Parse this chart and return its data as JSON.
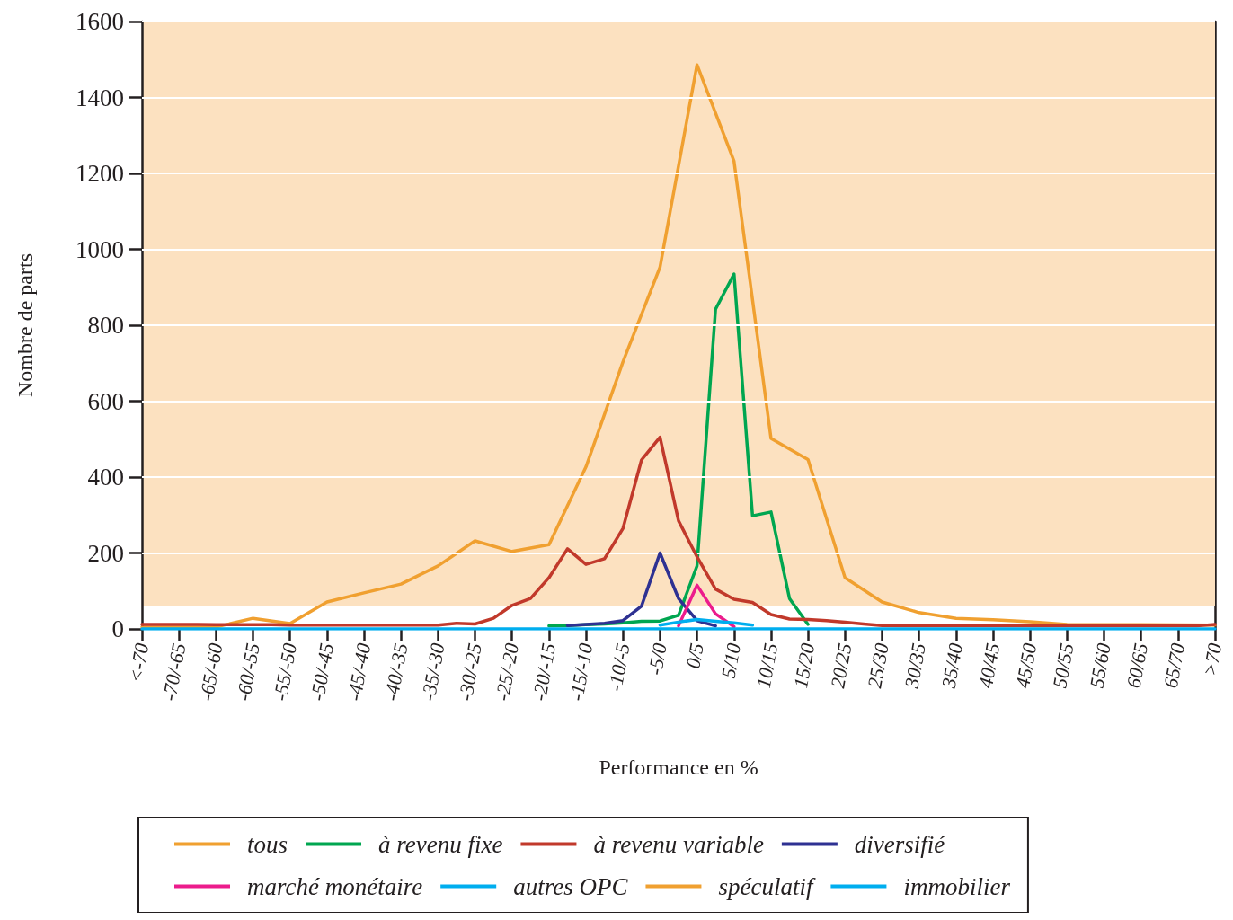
{
  "chart_data": {
    "type": "line",
    "xlabel": "Performance en %",
    "ylabel": "Nombre de parts",
    "categories": [
      "<-70",
      null,
      "-70/-65",
      null,
      "-65/-60",
      null,
      "-60/-55",
      null,
      "-55/-50",
      null,
      "-50/-45",
      null,
      "-45/-40",
      null,
      "-40/-35",
      null,
      "-35/-30",
      null,
      "-30/-25",
      null,
      "-25/-20",
      null,
      "-20/-15",
      null,
      "-15/-10",
      null,
      "-10/-5",
      null,
      "-5/0",
      null,
      "0/5",
      null,
      "5/10",
      null,
      "10/15",
      null,
      "15/20",
      null,
      "20/25",
      null,
      "25/30",
      null,
      "30/35",
      null,
      "35/40",
      null,
      "40/45",
      null,
      "45/50",
      null,
      "50/55",
      null,
      "55/60",
      null,
      "60/65",
      null,
      "65/70",
      null,
      ">70"
    ],
    "series": [
      {
        "name": "tous",
        "color": "#f0a030",
        "values": [
          5,
          null,
          5,
          null,
          5,
          null,
          28,
          null,
          14,
          null,
          71,
          null,
          95,
          null,
          118,
          null,
          166,
          null,
          232,
          null,
          204,
          null,
          222,
          null,
          427,
          null,
          704,
          null,
          953,
          null,
          1486,
          null,
          1232,
          null,
          502,
          null,
          446,
          null,
          135,
          null,
          71,
          null,
          43,
          null,
          28,
          null,
          24,
          null,
          19,
          null,
          12,
          null,
          null,
          null,
          null,
          null,
          null,
          null,
          10
        ]
      },
      {
        "name": "à revenu fixe",
        "color": "#00a650",
        "values": [
          null,
          null,
          null,
          null,
          null,
          null,
          null,
          null,
          null,
          null,
          null,
          null,
          null,
          null,
          null,
          null,
          null,
          null,
          null,
          null,
          null,
          null,
          8,
          9,
          11,
          13,
          16,
          20,
          21,
          36,
          166,
          842,
          935,
          298,
          308,
          80,
          12,
          null,
          null,
          null,
          null,
          null,
          null,
          null,
          null,
          null,
          null,
          null,
          null,
          null,
          null,
          null,
          null,
          null,
          null,
          null,
          null,
          null,
          null
        ]
      },
      {
        "name": "à revenu variable",
        "color": "#c1392b",
        "values": [
          12,
          12,
          12,
          12,
          11,
          11,
          11,
          11,
          10,
          10,
          10,
          10,
          10,
          10,
          10,
          10,
          10,
          15,
          13,
          28,
          62,
          80,
          135,
          211,
          170,
          185,
          265,
          445,
          505,
          285,
          190,
          105,
          78,
          70,
          38,
          26,
          25,
          22,
          18,
          13,
          9,
          8,
          8,
          8,
          8,
          8,
          8,
          8,
          8,
          8,
          8,
          8,
          8,
          8,
          8,
          8,
          8,
          8,
          12
        ]
      },
      {
        "name": "diversifié",
        "color": "#2e3192",
        "values": [
          null,
          null,
          null,
          null,
          null,
          null,
          null,
          null,
          null,
          null,
          null,
          null,
          null,
          null,
          null,
          null,
          null,
          null,
          null,
          null,
          null,
          null,
          null,
          9,
          12,
          15,
          22,
          60,
          200,
          80,
          22,
          8,
          null,
          null,
          null,
          null,
          null,
          null,
          null,
          null,
          null,
          null,
          null,
          null,
          null,
          null,
          null,
          null,
          null,
          null,
          null,
          null,
          null,
          null,
          null,
          null,
          null,
          null,
          null
        ]
      },
      {
        "name": "marché monétaire",
        "color": "#ec1c8c",
        "values": [
          null,
          null,
          null,
          null,
          null,
          null,
          null,
          null,
          null,
          null,
          null,
          null,
          null,
          null,
          null,
          null,
          null,
          null,
          null,
          null,
          null,
          null,
          null,
          null,
          null,
          null,
          null,
          null,
          null,
          8,
          115,
          40,
          6,
          null,
          null,
          null,
          null,
          null,
          null,
          null,
          null,
          null,
          null,
          null,
          null,
          null,
          null,
          null,
          null,
          null,
          null,
          null,
          null,
          null,
          null,
          null,
          null,
          null,
          null
        ]
      },
      {
        "name": "autres OPC",
        "color": "#00aeef",
        "values": [
          null,
          null,
          null,
          null,
          null,
          null,
          null,
          null,
          null,
          null,
          null,
          null,
          null,
          null,
          null,
          null,
          null,
          null,
          null,
          null,
          null,
          null,
          null,
          null,
          null,
          null,
          null,
          null,
          10,
          18,
          25,
          20,
          16,
          10,
          null,
          null,
          null,
          null,
          null,
          null,
          null,
          null,
          null,
          null,
          null,
          null,
          null,
          null,
          null,
          null,
          null,
          null,
          null,
          null,
          null,
          null,
          null,
          null,
          null
        ]
      },
      {
        "name": "spéculatif",
        "color": "#f0a030",
        "values": [
          null,
          null,
          null,
          null,
          null,
          null,
          null,
          null,
          null,
          null,
          null,
          null,
          null,
          null,
          null,
          null,
          null,
          null,
          null,
          null,
          null,
          null,
          null,
          null,
          null,
          null,
          null,
          null,
          null,
          null,
          null,
          null,
          null,
          null,
          null,
          null,
          null,
          null,
          null,
          null,
          null,
          null,
          null,
          null,
          null,
          null,
          null,
          null,
          null,
          null,
          null,
          null,
          null,
          null,
          null,
          null,
          null,
          null,
          null
        ]
      },
      {
        "name": "immobilier",
        "color": "#00aeef",
        "values": [
          0,
          0,
          0,
          0,
          0,
          0,
          0,
          0,
          0,
          0,
          0,
          0,
          0,
          0,
          0,
          0,
          0,
          0,
          0,
          0,
          0,
          0,
          0,
          0,
          0,
          0,
          0,
          0,
          0,
          0,
          0,
          0,
          0,
          0,
          0,
          0,
          0,
          0,
          0,
          0,
          0,
          0,
          0,
          0,
          0,
          0,
          0,
          0,
          0,
          0,
          0,
          0,
          0,
          0,
          0,
          0,
          0,
          0,
          0
        ]
      }
    ],
    "ylim": [
      0,
      1600
    ],
    "yticks": [
      0,
      200,
      400,
      600,
      800,
      1000,
      1200,
      1400,
      1600
    ],
    "bands": [
      {
        "axis": "y",
        "from": 60,
        "to": 1600,
        "color": "#fce1c0"
      }
    ],
    "grid": "y",
    "legend": "bottom",
    "marker": "none",
    "line_style": "solid"
  }
}
